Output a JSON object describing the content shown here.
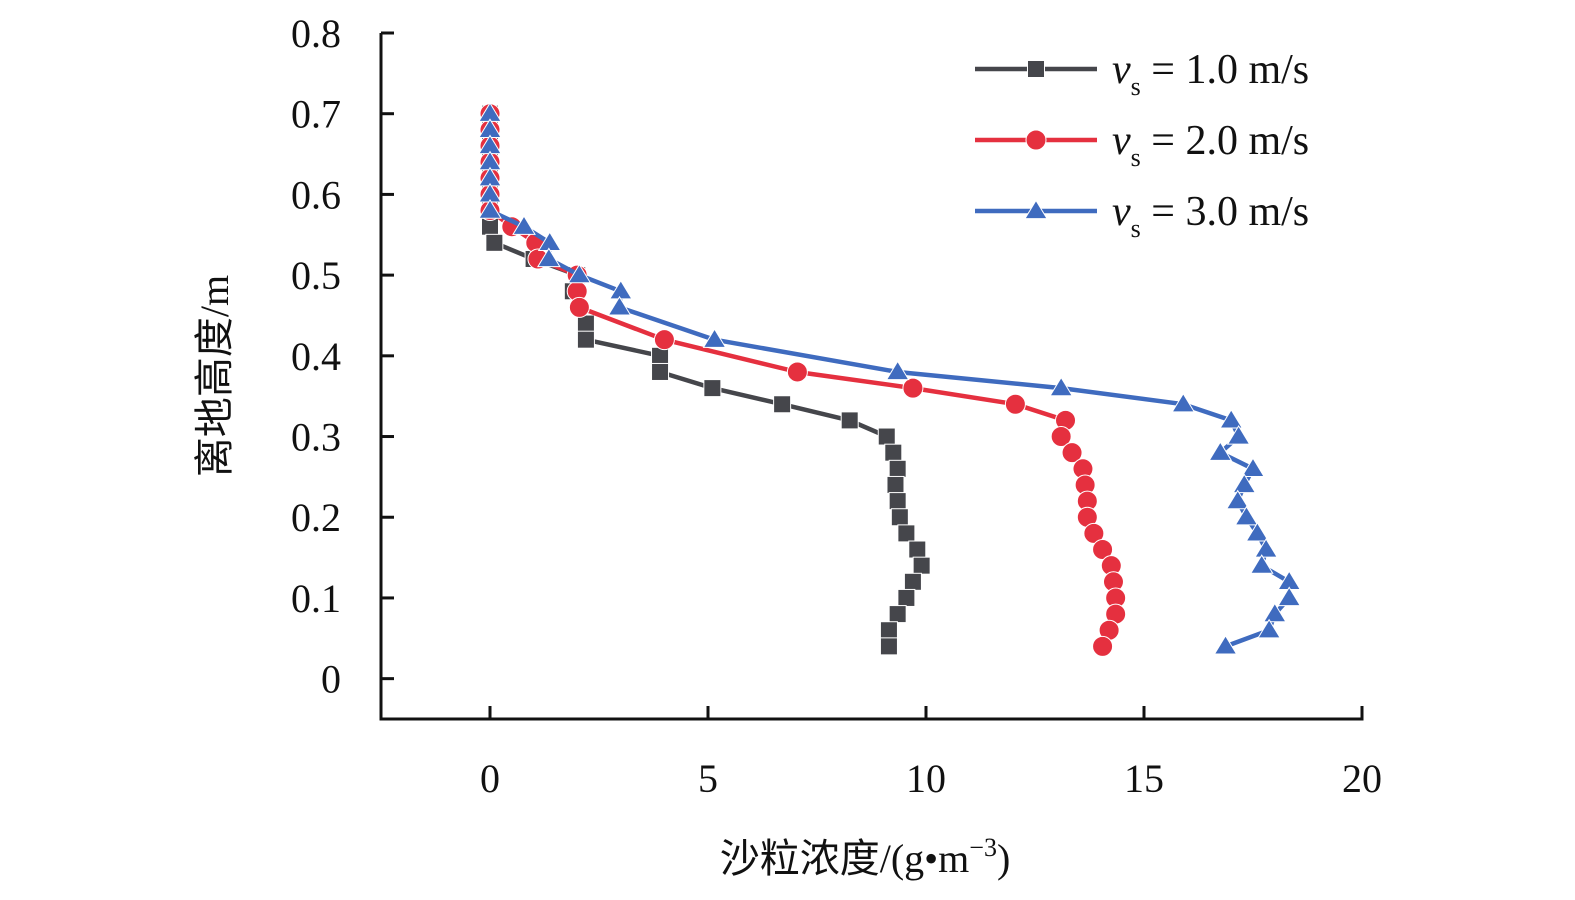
{
  "chart_data": {
    "type": "line",
    "xlabel": "沙粒浓度/(g•m⁻³)",
    "xlabel_parts": {
      "main": "沙粒浓度/(g•m",
      "sup": "−3",
      "close": ")"
    },
    "ylabel": "离地高度/m",
    "xlim": [
      -2.5,
      20
    ],
    "ylim": [
      -0.05,
      0.8
    ],
    "x_ticks": [
      0,
      5,
      10,
      15,
      20
    ],
    "x_tick_labels": [
      "0",
      "5",
      "10",
      "15",
      "20"
    ],
    "y_ticks": [
      0,
      0.1,
      0.2,
      0.3,
      0.4,
      0.5,
      0.6,
      0.7,
      0.8
    ],
    "y_tick_labels": [
      "0",
      "0.1",
      "0.2",
      "0.3",
      "0.4",
      "0.5",
      "0.6",
      "0.7",
      "0.8"
    ],
    "grid": false,
    "legend_position": "top-right",
    "series": [
      {
        "name": "vs = 1.0 m/s",
        "legend": {
          "var": "v",
          "sub": "s",
          "text": " = 1.0 m/s"
        },
        "marker": "square",
        "color": "#45464b",
        "points": [
          [
            0,
            0.7
          ],
          [
            0,
            0.68
          ],
          [
            0,
            0.66
          ],
          [
            0,
            0.64
          ],
          [
            0,
            0.62
          ],
          [
            0,
            0.6
          ],
          [
            0,
            0.58
          ],
          [
            0,
            0.56
          ],
          [
            0.1,
            0.54
          ],
          [
            1.0,
            0.52
          ],
          [
            2.0,
            0.5
          ],
          [
            1.9,
            0.48
          ],
          [
            2.2,
            0.44
          ],
          [
            2.2,
            0.42
          ],
          [
            3.9,
            0.4
          ],
          [
            3.9,
            0.38
          ],
          [
            5.1,
            0.36
          ],
          [
            6.7,
            0.34
          ],
          [
            8.25,
            0.32
          ],
          [
            9.1,
            0.3
          ],
          [
            9.25,
            0.28
          ],
          [
            9.35,
            0.26
          ],
          [
            9.3,
            0.24
          ],
          [
            9.35,
            0.22
          ],
          [
            9.4,
            0.2
          ],
          [
            9.55,
            0.18
          ],
          [
            9.8,
            0.16
          ],
          [
            9.9,
            0.14
          ],
          [
            9.7,
            0.12
          ],
          [
            9.55,
            0.1
          ],
          [
            9.35,
            0.08
          ],
          [
            9.15,
            0.06
          ],
          [
            9.15,
            0.04
          ]
        ]
      },
      {
        "name": "vs = 2.0 m/s",
        "legend": {
          "var": "v",
          "sub": "s",
          "text": " = 2.0 m/s"
        },
        "marker": "circle",
        "color": "#e5303f",
        "points": [
          [
            0,
            0.7
          ],
          [
            0,
            0.68
          ],
          [
            0,
            0.66
          ],
          [
            0,
            0.64
          ],
          [
            0,
            0.62
          ],
          [
            0,
            0.6
          ],
          [
            0,
            0.58
          ],
          [
            0.5,
            0.56
          ],
          [
            1.05,
            0.54
          ],
          [
            1.1,
            0.52
          ],
          [
            2.0,
            0.5
          ],
          [
            2.0,
            0.48
          ],
          [
            2.05,
            0.46
          ],
          [
            4.0,
            0.42
          ],
          [
            7.05,
            0.38
          ],
          [
            9.7,
            0.36
          ],
          [
            12.05,
            0.34
          ],
          [
            13.2,
            0.32
          ],
          [
            13.1,
            0.3
          ],
          [
            13.35,
            0.28
          ],
          [
            13.6,
            0.26
          ],
          [
            13.65,
            0.24
          ],
          [
            13.7,
            0.22
          ],
          [
            13.7,
            0.2
          ],
          [
            13.85,
            0.18
          ],
          [
            14.05,
            0.16
          ],
          [
            14.25,
            0.14
          ],
          [
            14.3,
            0.12
          ],
          [
            14.35,
            0.1
          ],
          [
            14.35,
            0.08
          ],
          [
            14.2,
            0.06
          ],
          [
            14.05,
            0.04
          ]
        ]
      },
      {
        "name": "vs = 3.0 m/s",
        "legend": {
          "var": "v",
          "sub": "s",
          "text": " = 3.0 m/s"
        },
        "marker": "triangle",
        "color": "#3f6bbf",
        "points": [
          [
            0,
            0.7
          ],
          [
            0,
            0.68
          ],
          [
            0,
            0.66
          ],
          [
            0,
            0.64
          ],
          [
            0,
            0.62
          ],
          [
            0,
            0.6
          ],
          [
            0,
            0.58
          ],
          [
            0.78,
            0.56
          ],
          [
            1.37,
            0.54
          ],
          [
            1.35,
            0.52
          ],
          [
            2.05,
            0.5
          ],
          [
            3.0,
            0.48
          ],
          [
            2.97,
            0.46
          ],
          [
            5.15,
            0.42
          ],
          [
            9.35,
            0.38
          ],
          [
            13.1,
            0.36
          ],
          [
            15.9,
            0.34
          ],
          [
            17.0,
            0.32
          ],
          [
            17.17,
            0.3
          ],
          [
            16.75,
            0.28
          ],
          [
            17.5,
            0.26
          ],
          [
            17.3,
            0.24
          ],
          [
            17.15,
            0.22
          ],
          [
            17.35,
            0.2
          ],
          [
            17.6,
            0.18
          ],
          [
            17.8,
            0.16
          ],
          [
            17.7,
            0.14
          ],
          [
            18.33,
            0.12
          ],
          [
            18.33,
            0.1
          ],
          [
            18.0,
            0.08
          ],
          [
            17.87,
            0.06
          ],
          [
            16.87,
            0.04
          ]
        ]
      }
    ]
  }
}
